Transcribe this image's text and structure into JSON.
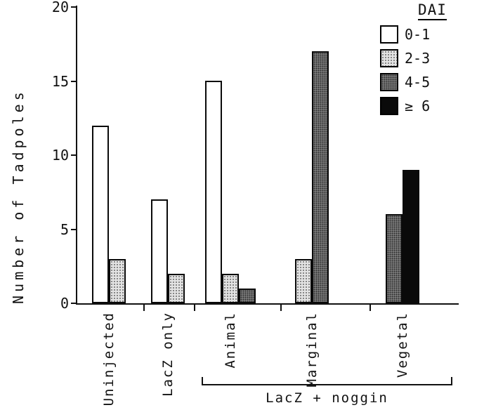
{
  "chart_data": {
    "type": "bar",
    "title": "",
    "ylabel": "Number of Tadpoles",
    "xlabel": "",
    "ylim": [
      0,
      20
    ],
    "yticks": [
      0,
      5,
      10,
      15,
      20
    ],
    "grid": false,
    "legend": {
      "title": "DAI",
      "position": "top-right",
      "entries": [
        {
          "label": "0-1",
          "fill": "white"
        },
        {
          "label": "2-3",
          "fill": "light-stipple"
        },
        {
          "label": "4-5",
          "fill": "dark-stipple"
        },
        {
          "label": "≥ 6",
          "fill": "black"
        }
      ]
    },
    "categories": [
      "Uninjected",
      "LacZ only",
      "Animal",
      "Marginal",
      "Vegetal"
    ],
    "groups": [
      {
        "label": "Uninjected",
        "bars": [
          {
            "dai": "0-1",
            "value": 12
          },
          {
            "dai": "2-3",
            "value": 3
          }
        ]
      },
      {
        "label": "LacZ only",
        "bars": [
          {
            "dai": "0-1",
            "value": 7
          },
          {
            "dai": "2-3",
            "value": 2
          }
        ]
      },
      {
        "label": "Animal",
        "bars": [
          {
            "dai": "0-1",
            "value": 15
          },
          {
            "dai": "2-3",
            "value": 2
          },
          {
            "dai": "4-5",
            "value": 1
          }
        ]
      },
      {
        "label": "Marginal",
        "bars": [
          {
            "dai": "2-3",
            "value": 3
          },
          {
            "dai": "4-5",
            "value": 17
          }
        ]
      },
      {
        "label": "Vegetal",
        "bars": [
          {
            "dai": "4-5",
            "value": 6
          },
          {
            "dai": "≥ 6",
            "value": 9
          }
        ]
      }
    ],
    "x_group_annotation": {
      "label": "LacZ + noggin",
      "covers": [
        "Animal",
        "Marginal",
        "Vegetal"
      ]
    },
    "colors": {
      "axis": "#111111",
      "bar_border": "#0a0a0a",
      "fill_white": "#ffffff",
      "fill_light_stipple": "#e3e3e3",
      "fill_dark_stipple": "#8f8f8f",
      "fill_black": "#0a0a0a"
    }
  }
}
